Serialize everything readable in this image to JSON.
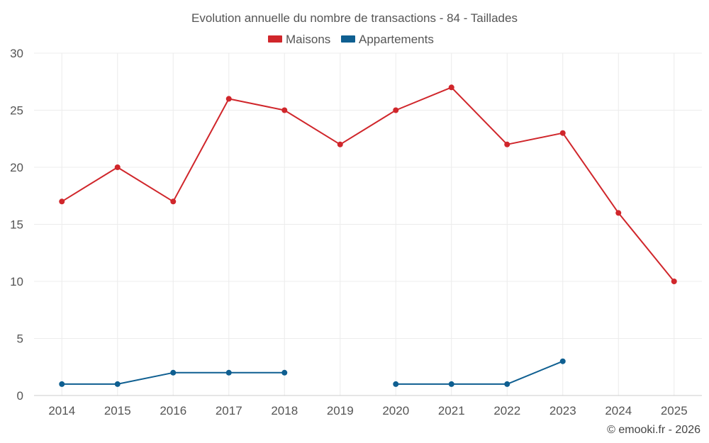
{
  "chart_data": {
    "type": "line",
    "title": "Evolution annuelle du nombre de transactions - 84 - Taillades",
    "categories": [
      "2014",
      "2015",
      "2016",
      "2017",
      "2018",
      "2019",
      "2020",
      "2021",
      "2022",
      "2023",
      "2024",
      "2025"
    ],
    "ylim": [
      0,
      30
    ],
    "yticks": [
      "0",
      "5",
      "10",
      "15",
      "20",
      "25",
      "30"
    ],
    "grid": true,
    "legend_position": "top-center",
    "series": [
      {
        "name": "Maisons",
        "color": "#d0262b",
        "values": [
          17,
          20,
          17,
          26,
          25,
          22,
          25,
          27,
          22,
          23,
          16,
          10
        ]
      },
      {
        "name": "Appartements",
        "color": "#0f5f91",
        "values": [
          1,
          1,
          2,
          2,
          2,
          null,
          1,
          1,
          1,
          3,
          null,
          null
        ]
      }
    ],
    "credit": "© emooki.fr - 2026"
  }
}
